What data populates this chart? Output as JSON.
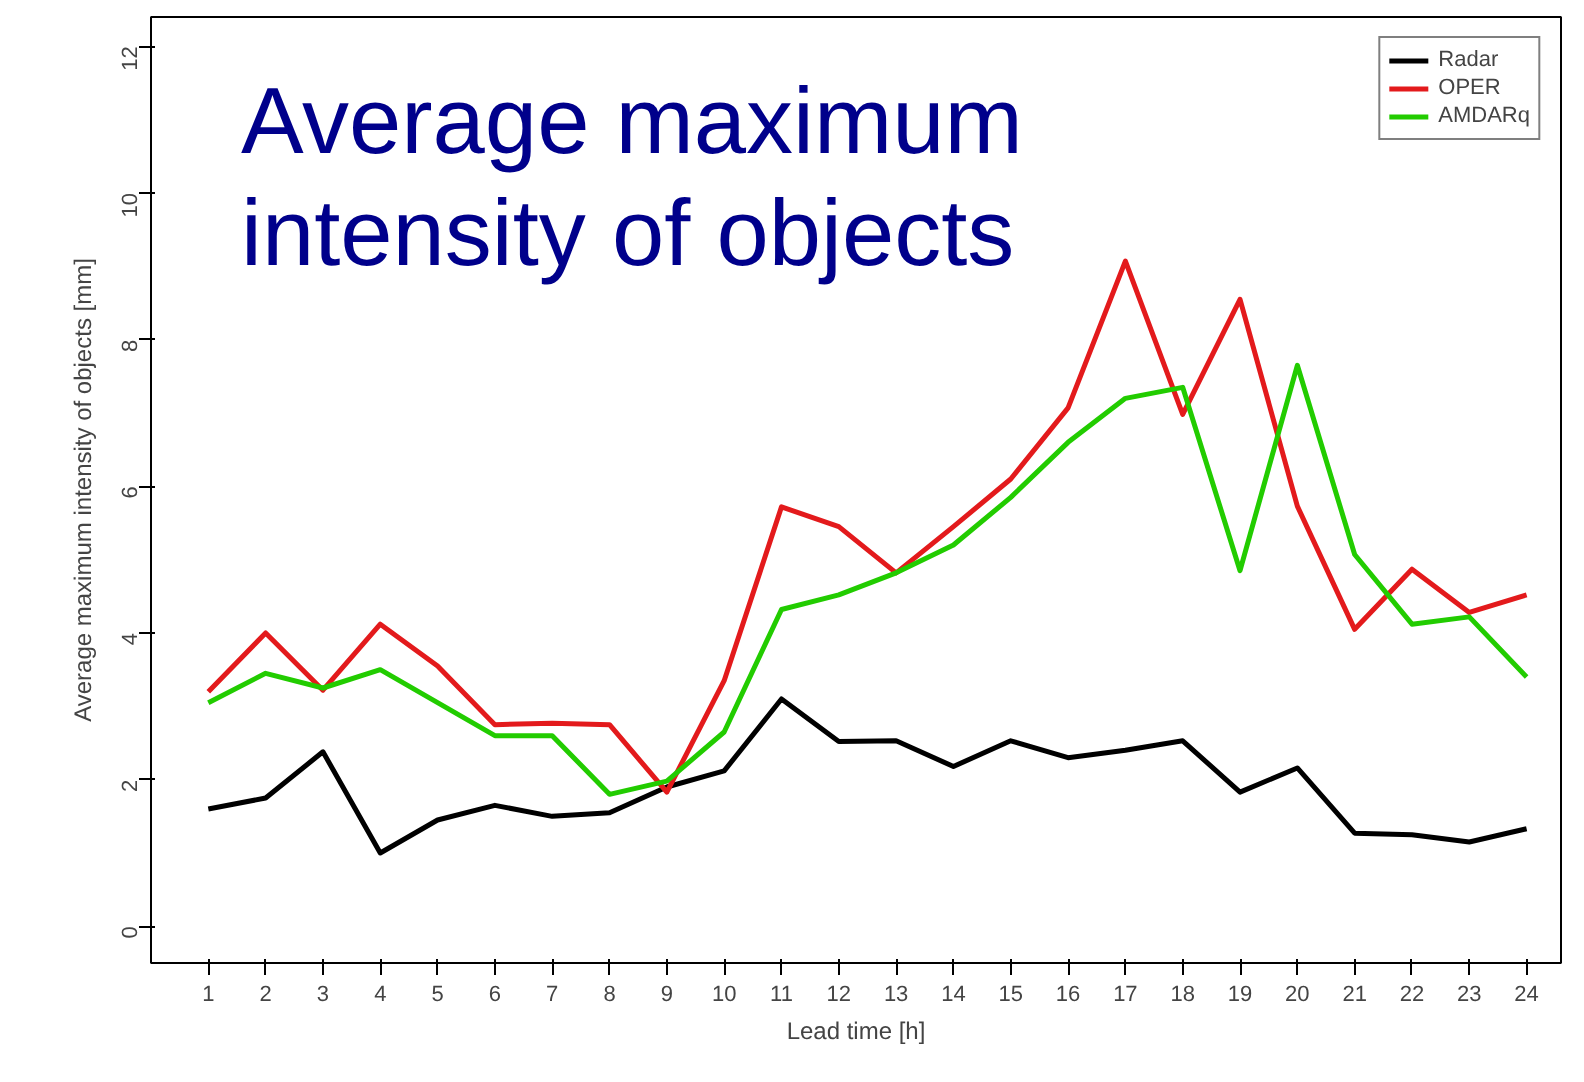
{
  "chart_data": {
    "type": "line",
    "title": "Average maximum intensity of objects",
    "xlabel": "Lead time [h]",
    "ylabel": "Average maximum intensity of objects [mm]",
    "x": [
      1,
      2,
      3,
      4,
      5,
      6,
      7,
      8,
      9,
      10,
      11,
      12,
      13,
      14,
      15,
      16,
      17,
      18,
      19,
      20,
      21,
      22,
      23,
      24
    ],
    "xlim": [
      0,
      24.6
    ],
    "xticks": [
      1,
      2,
      3,
      4,
      5,
      6,
      7,
      8,
      9,
      10,
      11,
      12,
      13,
      14,
      15,
      16,
      17,
      18,
      19,
      20,
      21,
      22,
      23,
      24
    ],
    "ylim": [
      -0.5,
      12.4
    ],
    "yticks": [
      0,
      2,
      4,
      6,
      8,
      10,
      12
    ],
    "legend": "top right",
    "grid": false,
    "line_style": "solid",
    "series": [
      {
        "name": "Radar",
        "color": "#000000",
        "values": [
          1.6,
          1.75,
          2.38,
          1.0,
          1.45,
          1.65,
          1.5,
          1.55,
          1.9,
          2.12,
          3.1,
          2.52,
          2.53,
          2.18,
          2.53,
          2.3,
          2.4,
          2.53,
          1.83,
          2.16,
          1.27,
          1.25,
          1.15,
          1.33
        ]
      },
      {
        "name": "OPER",
        "color": "#e31a1c",
        "values": [
          3.2,
          4.0,
          3.22,
          4.12,
          3.55,
          2.75,
          2.77,
          2.75,
          1.83,
          3.35,
          5.72,
          5.45,
          4.82,
          5.45,
          6.1,
          7.07,
          9.07,
          6.98,
          8.55,
          5.73,
          4.05,
          4.87,
          4.28,
          4.52
        ]
      },
      {
        "name": "AMDARq",
        "color": "#22cc00",
        "values": [
          3.05,
          3.45,
          3.25,
          3.5,
          3.05,
          2.6,
          2.6,
          1.8,
          1.98,
          2.65,
          4.32,
          4.52,
          4.82,
          5.2,
          5.85,
          6.6,
          7.2,
          7.35,
          4.85,
          7.65,
          5.07,
          4.12,
          4.22,
          3.4
        ]
      }
    ]
  }
}
